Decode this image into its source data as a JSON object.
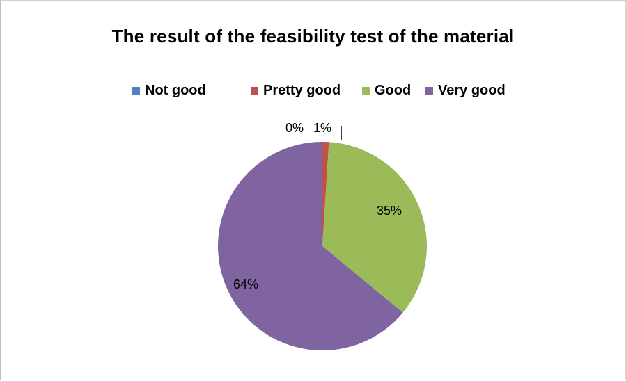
{
  "chart_data": {
    "type": "pie",
    "title": "The result of the feasibility test of the material",
    "legend_position": "top",
    "categories": [
      "Not good",
      "Pretty good",
      "Good",
      "Very good"
    ],
    "values": [
      0,
      1,
      35,
      64
    ],
    "labels": [
      "0%",
      "1%",
      "35%",
      "64%"
    ],
    "colors": [
      "#4f81bd",
      "#c0504d",
      "#9bbb59",
      "#8064a2"
    ]
  }
}
